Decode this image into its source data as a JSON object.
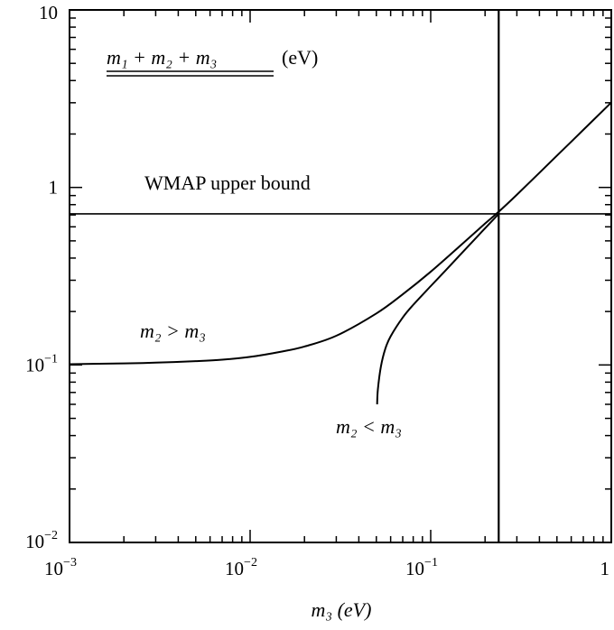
{
  "chart_data": {
    "type": "line",
    "title": "",
    "xlabel": "m₃ (eV)",
    "ylabel": "",
    "xscale": "log",
    "yscale": "log",
    "xlim": [
      0.001,
      1
    ],
    "ylim": [
      0.01,
      10
    ],
    "x_tick_labels": [
      {
        "base": "10",
        "exp": "−3",
        "value": 0.001
      },
      {
        "base": "10",
        "exp": "−2",
        "value": 0.01
      },
      {
        "base": "10",
        "exp": "−1",
        "value": 0.1
      },
      {
        "base": "1",
        "exp": "",
        "value": 1
      }
    ],
    "y_tick_labels": [
      {
        "base": "10",
        "exp": "",
        "value": 10
      },
      {
        "base": "1",
        "exp": "",
        "value": 1
      },
      {
        "base": "10",
        "exp": "−1",
        "value": 0.1
      },
      {
        "base": "10",
        "exp": "−2",
        "value": 0.01
      }
    ],
    "series": [
      {
        "name": "m₂ > m₃",
        "x": [
          0.001,
          0.002,
          0.003,
          0.005,
          0.007,
          0.01,
          0.015,
          0.02,
          0.03,
          0.05,
          0.07,
          0.1,
          0.15,
          0.2,
          0.238,
          0.3,
          0.5,
          0.7,
          1.0
        ],
        "y": [
          0.101,
          0.102,
          0.103,
          0.105,
          0.107,
          0.111,
          0.119,
          0.127,
          0.146,
          0.195,
          0.25,
          0.335,
          0.482,
          0.626,
          0.73,
          0.91,
          1.51,
          2.11,
          3.01
        ]
      },
      {
        "name": "m₂ < m₃",
        "x": [
          0.0505,
          0.051,
          0.053,
          0.056,
          0.06,
          0.07,
          0.08,
          0.1,
          0.12,
          0.15,
          0.2,
          0.238
        ],
        "y": [
          0.06,
          0.073,
          0.098,
          0.123,
          0.145,
          0.185,
          0.218,
          0.278,
          0.338,
          0.431,
          0.589,
          0.71
        ]
      }
    ],
    "reference_lines": [
      {
        "orientation": "horizontal",
        "value": 0.71
      },
      {
        "orientation": "vertical",
        "value": 0.238
      }
    ],
    "annotations": {
      "header": {
        "main": "m₁ + m₂ + m₃",
        "unit": "(eV)"
      },
      "wmap": "WMAP upper bound",
      "upper_branch": "m₂ > m₃",
      "lower_branch": "m₂ < m₃"
    },
    "grid": false,
    "legend": "none"
  }
}
